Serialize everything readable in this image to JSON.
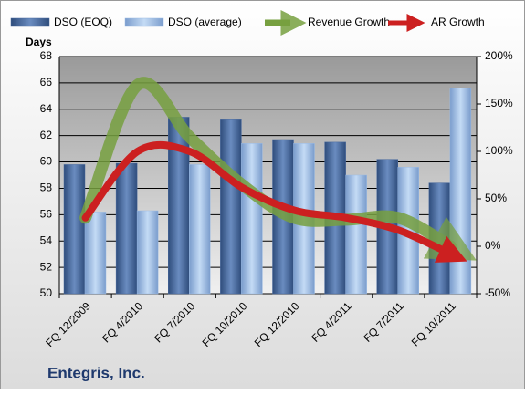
{
  "chart_data": {
    "type": "bar",
    "title": "Entegris, Inc.",
    "y_label": "Days",
    "categories": [
      "FQ 12/2009",
      "FQ 4/2010",
      "FQ 7/2010",
      "FQ 10/2010",
      "FQ 12/2010",
      "FQ 4/2011",
      "FQ 7/2011",
      "FQ 10/2011"
    ],
    "series": [
      {
        "name": "DSO (EOQ)",
        "color": "#4a6a9e",
        "values": [
          59.8,
          59.9,
          63.4,
          63.2,
          61.7,
          61.5,
          60.2,
          58.4
        ]
      },
      {
        "name": "DSO (average)",
        "color": "#9bbbe4",
        "values": [
          56.2,
          56.3,
          59.8,
          61.4,
          61.4,
          59.0,
          59.6,
          65.6
        ]
      },
      {
        "name": "Revenue Growth",
        "color": "#77a040",
        "type": "line",
        "axis": "y2",
        "values": [
          30,
          170,
          115,
          65,
          30,
          28,
          30,
          0
        ]
      },
      {
        "name": "AR Growth",
        "color": "#cc2020",
        "type": "line",
        "axis": "y2",
        "values": [
          30,
          100,
          100,
          62,
          38,
          30,
          17,
          -8
        ]
      }
    ],
    "ylim": [
      50,
      68
    ],
    "yticks": [
      50,
      52,
      54,
      56,
      58,
      60,
      62,
      64,
      66,
      68
    ],
    "y2lim": [
      -50,
      200
    ],
    "y2ticks": [
      {
        "value": -50,
        "label": "-50%"
      },
      {
        "value": 0,
        "label": "0%"
      },
      {
        "value": 50,
        "label": "50%"
      },
      {
        "value": 100,
        "label": "100%"
      },
      {
        "value": 150,
        "label": "150%"
      },
      {
        "value": 200,
        "label": "200%"
      }
    ],
    "grid": true,
    "legend": "top"
  }
}
